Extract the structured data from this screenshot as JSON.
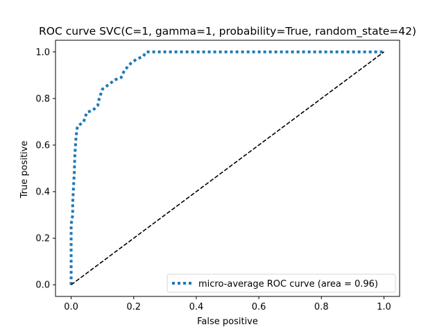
{
  "chart_data": {
    "type": "line",
    "title": "ROC curve SVC(C=1, gamma=1, probability=True, random_state=42)",
    "xlabel": "False positive",
    "ylabel": "True positive",
    "xlim": [
      -0.05,
      1.05
    ],
    "ylim": [
      -0.05,
      1.05
    ],
    "xticks": [
      "0.0",
      "0.2",
      "0.4",
      "0.6",
      "0.8",
      "1.0"
    ],
    "yticks": [
      "0.0",
      "0.2",
      "0.4",
      "0.6",
      "0.8",
      "1.0"
    ],
    "grid": false,
    "legend_position": "lower-right",
    "series": [
      {
        "name": "micro-average ROC curve (area = 0.96)",
        "style": "dotted",
        "color": "#1f77b4",
        "x": [
          0.0,
          0.0,
          0.0,
          0.0,
          0.0,
          0.005,
          0.005,
          0.008,
          0.01,
          0.012,
          0.014,
          0.016,
          0.02,
          0.04,
          0.05,
          0.07,
          0.085,
          0.09,
          0.1,
          0.12,
          0.14,
          0.16,
          0.17,
          0.19,
          0.21,
          0.23,
          0.24,
          0.3,
          0.4,
          0.5,
          0.6,
          0.7,
          0.8,
          0.9,
          1.0
        ],
        "y": [
          0.0,
          0.05,
          0.1,
          0.18,
          0.26,
          0.3,
          0.35,
          0.43,
          0.48,
          0.56,
          0.6,
          0.64,
          0.68,
          0.7,
          0.74,
          0.75,
          0.77,
          0.8,
          0.84,
          0.86,
          0.88,
          0.89,
          0.92,
          0.95,
          0.97,
          0.98,
          1.0,
          1.0,
          1.0,
          1.0,
          1.0,
          1.0,
          1.0,
          1.0,
          1.0
        ]
      },
      {
        "style": "dashed",
        "color": "#000000",
        "x": [
          0,
          1
        ],
        "y": [
          0,
          1
        ]
      }
    ]
  }
}
